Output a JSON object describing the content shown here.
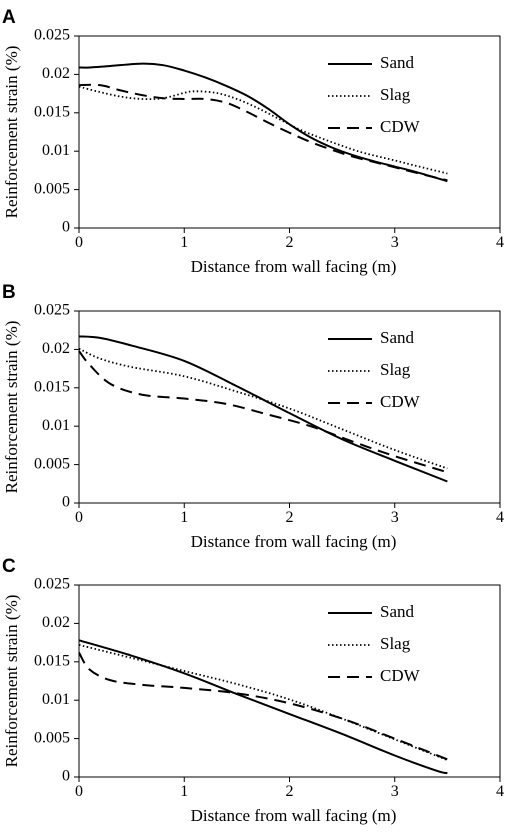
{
  "chart_data": [
    {
      "panel_label": "A",
      "type": "line",
      "xlabel": "Distance from wall facing (m)",
      "ylabel": "Reinforcement strain (%)",
      "xlim": [
        0,
        4
      ],
      "ylim": [
        0,
        0.025
      ],
      "xticks": [
        "0",
        "1",
        "2",
        "3",
        "4"
      ],
      "yticks": [
        "0",
        "0.005",
        "0.01",
        "0.015",
        "0.02",
        "0.025"
      ],
      "grid": false,
      "legend_position": "top-right",
      "series": [
        {
          "name": "Sand",
          "style": "solid",
          "x": [
            0,
            0.1,
            0.3,
            0.6,
            0.8,
            1.0,
            1.2,
            1.4,
            1.6,
            1.8,
            2.0,
            2.2,
            2.4,
            2.6,
            2.8,
            3.0,
            3.2,
            3.5
          ],
          "y": [
            0.0209,
            0.0209,
            0.0211,
            0.0214,
            0.0212,
            0.0205,
            0.0196,
            0.0185,
            0.0172,
            0.0155,
            0.0135,
            0.0118,
            0.0105,
            0.0095,
            0.0087,
            0.008,
            0.0073,
            0.0061
          ]
        },
        {
          "name": "Slag",
          "style": "dotted",
          "x": [
            0,
            0.2,
            0.4,
            0.6,
            0.8,
            1.0,
            1.1,
            1.3,
            1.5,
            1.7,
            1.9,
            2.1,
            2.3,
            2.5,
            2.7,
            3.0,
            3.2,
            3.5
          ],
          "y": [
            0.0184,
            0.0177,
            0.0171,
            0.0168,
            0.0169,
            0.0176,
            0.0178,
            0.0176,
            0.0168,
            0.0156,
            0.0142,
            0.0128,
            0.0117,
            0.0107,
            0.0098,
            0.0088,
            0.0081,
            0.0071
          ]
        },
        {
          "name": "CDW",
          "style": "dashed",
          "x": [
            0,
            0.2,
            0.4,
            0.6,
            0.8,
            1.0,
            1.2,
            1.4,
            1.6,
            1.8,
            2.0,
            2.2,
            2.4,
            2.6,
            2.8,
            3.0,
            3.2,
            3.5
          ],
          "y": [
            0.0186,
            0.0186,
            0.0179,
            0.0173,
            0.0169,
            0.0168,
            0.0168,
            0.0163,
            0.0151,
            0.0137,
            0.0124,
            0.0112,
            0.0102,
            0.0093,
            0.0086,
            0.0079,
            0.0072,
            0.0062
          ]
        }
      ]
    },
    {
      "panel_label": "B",
      "type": "line",
      "xlabel": "Distance from wall facing (m)",
      "ylabel": "Reinforcement strain (%)",
      "xlim": [
        0,
        4
      ],
      "ylim": [
        0,
        0.025
      ],
      "xticks": [
        "0",
        "1",
        "2",
        "3",
        "4"
      ],
      "yticks": [
        "0",
        "0.005",
        "0.01",
        "0.015",
        "0.02",
        "0.025"
      ],
      "grid": false,
      "legend_position": "top-right",
      "series": [
        {
          "name": "Sand",
          "style": "solid",
          "x": [
            0,
            0.2,
            0.5,
            1.0,
            1.5,
            2.0,
            2.5,
            3.0,
            3.5
          ],
          "y": [
            0.0217,
            0.0215,
            0.0205,
            0.0185,
            0.0152,
            0.0117,
            0.0083,
            0.0055,
            0.0028
          ]
        },
        {
          "name": "Slag",
          "style": "dotted",
          "x": [
            0,
            0.2,
            0.5,
            1.0,
            1.5,
            2.0,
            2.5,
            3.0,
            3.5
          ],
          "y": [
            0.0201,
            0.0188,
            0.0177,
            0.0165,
            0.0145,
            0.0123,
            0.0096,
            0.0069,
            0.0045
          ]
        },
        {
          "name": "CDW",
          "style": "dashed",
          "x": [
            0,
            0.1,
            0.3,
            0.6,
            1.0,
            1.4,
            1.8,
            2.2,
            2.6,
            3.0,
            3.5
          ],
          "y": [
            0.0198,
            0.018,
            0.0155,
            0.0141,
            0.0136,
            0.0129,
            0.0115,
            0.01,
            0.008,
            0.0061,
            0.004
          ]
        }
      ]
    },
    {
      "panel_label": "C",
      "type": "line",
      "xlabel": "Distance from wall facing (m)",
      "ylabel": "Reinforcement strain (%)",
      "xlim": [
        0,
        4
      ],
      "ylim": [
        0,
        0.025
      ],
      "xticks": [
        "0",
        "1",
        "2",
        "3",
        "4"
      ],
      "yticks": [
        "0",
        "0.005",
        "0.01",
        "0.015",
        "0.02",
        "0.025"
      ],
      "grid": false,
      "legend_position": "top-right",
      "series": [
        {
          "name": "Sand",
          "style": "solid",
          "x": [
            0,
            0.5,
            1.0,
            1.5,
            2.0,
            2.5,
            3.0,
            3.4,
            3.5
          ],
          "y": [
            0.0178,
            0.0158,
            0.0135,
            0.0108,
            0.0082,
            0.0056,
            0.0028,
            0.0008,
            0.0005
          ]
        },
        {
          "name": "Slag",
          "style": "dotted",
          "x": [
            0,
            0.5,
            1.0,
            1.5,
            2.0,
            2.5,
            3.0,
            3.5
          ],
          "y": [
            0.0172,
            0.0155,
            0.0138,
            0.0121,
            0.0101,
            0.0076,
            0.0049,
            0.0022
          ]
        },
        {
          "name": "CDW",
          "style": "dashed",
          "x": [
            0,
            0.1,
            0.3,
            0.6,
            1.0,
            1.5,
            2.0,
            2.5,
            3.0,
            3.5
          ],
          "y": [
            0.0162,
            0.014,
            0.0126,
            0.012,
            0.0116,
            0.0109,
            0.0096,
            0.0076,
            0.005,
            0.0023
          ]
        }
      ]
    }
  ]
}
